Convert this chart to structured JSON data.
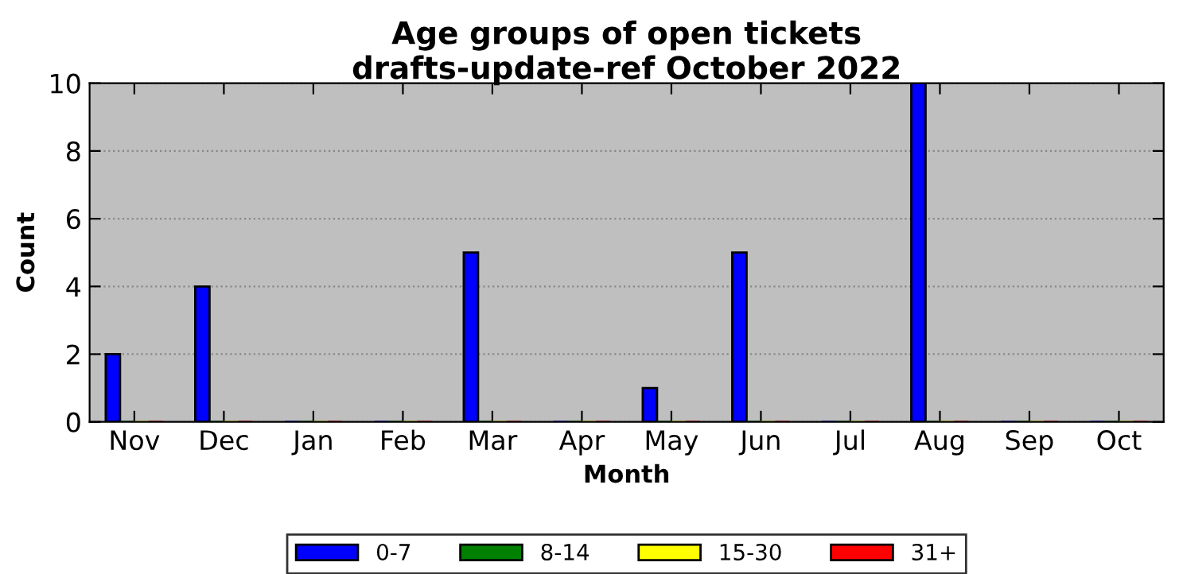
{
  "chart_data": {
    "type": "bar",
    "title": "Age groups of open tickets\ndrafts-update-ref October 2022",
    "xlabel": "Month",
    "ylabel": "Count",
    "categories": [
      "Nov",
      "Dec",
      "Jan",
      "Feb",
      "Mar",
      "Apr",
      "May",
      "Jun",
      "Jul",
      "Aug",
      "Sep",
      "Oct"
    ],
    "series": [
      {
        "name": "0-7",
        "color": "#0000ff",
        "values": [
          2,
          4,
          0,
          0,
          5,
          0,
          1,
          5,
          0,
          10,
          0,
          0
        ]
      },
      {
        "name": "8-14",
        "color": "#008000",
        "values": [
          0,
          0,
          0,
          0,
          0,
          0,
          0,
          0,
          0,
          0,
          0,
          0
        ]
      },
      {
        "name": "15-30",
        "color": "#ffff00",
        "values": [
          0,
          0,
          0,
          0,
          0,
          0,
          0,
          0,
          0,
          0,
          0,
          0
        ]
      },
      {
        "name": "31+",
        "color": "#ff0000",
        "values": [
          0,
          0,
          0,
          0,
          0,
          0,
          0,
          0,
          0,
          0,
          0,
          0
        ]
      }
    ],
    "ylim": [
      0,
      10
    ],
    "yticks": [
      0,
      2,
      4,
      6,
      8,
      10
    ],
    "grid": "y",
    "legend": "bottom"
  }
}
